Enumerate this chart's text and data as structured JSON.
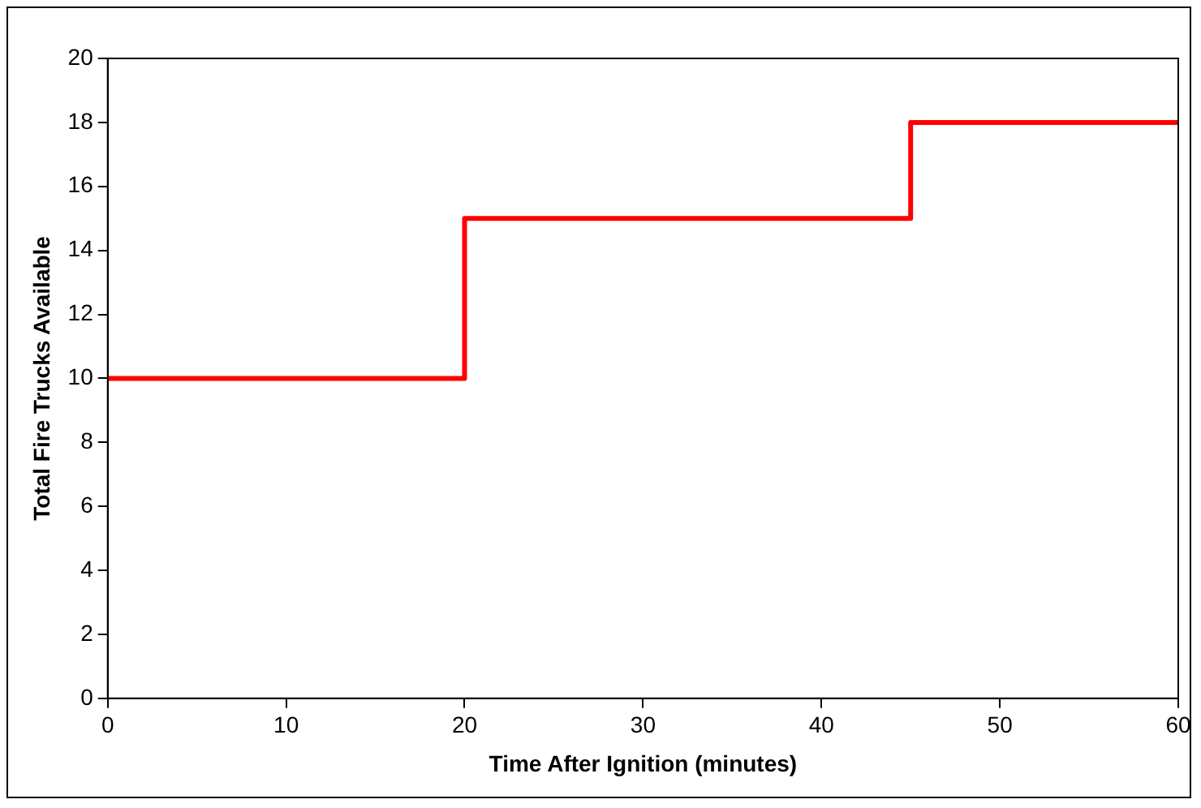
{
  "chart_data": {
    "type": "step",
    "xlabel": "Time After Ignition (minutes)",
    "ylabel": "Total Fire Trucks Available",
    "x": [
      0,
      20,
      45,
      60
    ],
    "series": [
      {
        "color": "#ff0000",
        "values": [
          10,
          15,
          18,
          18
        ]
      }
    ],
    "xlim": [
      0,
      60
    ],
    "xticks": [
      0,
      10,
      20,
      30,
      40,
      50,
      60
    ],
    "ylim": [
      0,
      20
    ],
    "yticks": [
      0,
      2,
      4,
      6,
      8,
      10,
      12,
      14,
      16,
      18,
      20
    ],
    "grid": false,
    "legend": false,
    "marker": "none",
    "line_style": "solid"
  }
}
